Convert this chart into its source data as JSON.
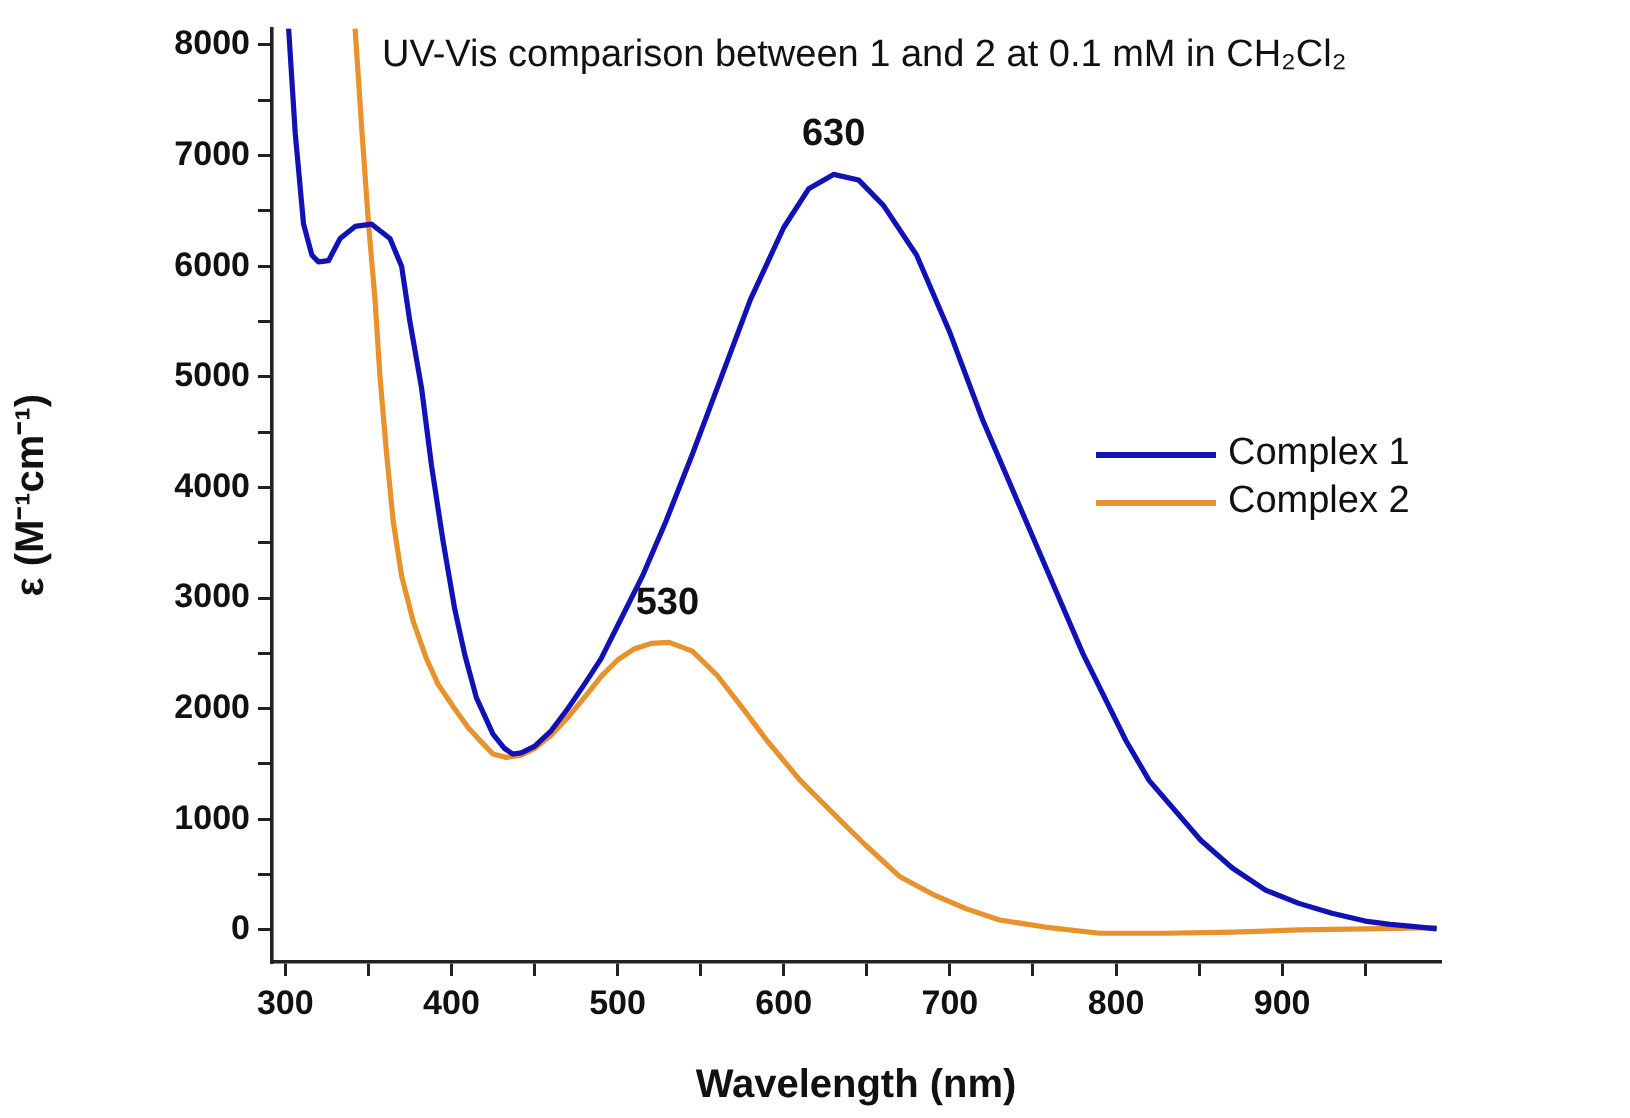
{
  "chart_data": {
    "type": "line",
    "title": "UV-Vis comparison between 1 and 2 at 0.1 mM in CH₂Cl₂",
    "xlabel": "Wavelength (nm)",
    "ylabel": "ε (M⁻¹cm⁻¹)",
    "xlim": [
      292,
      995
    ],
    "ylim": [
      -290,
      8150
    ],
    "xticks": [
      300,
      {
        "value": 350,
        "label": null
      },
      400,
      {
        "value": 450,
        "label": null
      },
      500,
      {
        "value": 550,
        "label": null
      },
      600,
      {
        "value": 650,
        "label": null
      },
      700,
      {
        "value": 750,
        "label": null
      },
      800,
      {
        "value": 850,
        "label": null
      },
      900,
      {
        "value": 950,
        "label": null
      }
    ],
    "yticks": [
      0,
      {
        "value": 500,
        "label": null
      },
      1000,
      {
        "value": 1500,
        "label": null
      },
      2000,
      {
        "value": 2500,
        "label": null
      },
      3000,
      {
        "value": 3500,
        "label": null
      },
      4000,
      {
        "value": 4500,
        "label": null
      },
      5000,
      {
        "value": 5500,
        "label": null
      },
      6000,
      {
        "value": 6500,
        "label": null
      },
      7000,
      {
        "value": 7500,
        "label": null
      },
      8000
    ],
    "grid": false,
    "legend": "right",
    "marker": "none",
    "line_style": "solid",
    "annotations": [
      {
        "text": "630",
        "x": 630,
        "y": 6840
      },
      {
        "text": "530",
        "x": 530,
        "y": 2600
      }
    ],
    "series": [
      {
        "name": "Complex 1",
        "color": "#1212b4",
        "x": [
          302,
          306,
          311,
          316,
          320,
          326,
          333,
          342,
          352,
          363,
          370,
          375,
          382,
          388,
          395,
          402,
          408,
          415,
          425,
          432,
          437,
          442,
          450,
          460,
          470,
          480,
          490,
          500,
          515,
          529,
          545,
          560,
          580,
          600,
          615,
          630,
          645,
          660,
          680,
          700,
          720,
          746,
          760,
          780,
          806,
          820,
          851,
          870,
          890,
          910,
          930,
          950,
          965,
          980,
          993
        ],
        "values": [
          8150,
          7200,
          6380,
          6100,
          6040,
          6050,
          6250,
          6360,
          6380,
          6250,
          6000,
          5500,
          4900,
          4200,
          3510,
          2900,
          2490,
          2100,
          1770,
          1640,
          1590,
          1600,
          1660,
          1800,
          2000,
          2220,
          2450,
          2750,
          3200,
          3690,
          4300,
          4900,
          5700,
          6350,
          6700,
          6830,
          6780,
          6550,
          6100,
          5400,
          4600,
          3690,
          3200,
          2500,
          1710,
          1350,
          810,
          560,
          360,
          240,
          150,
          80,
          50,
          30,
          10
        ]
      },
      {
        "name": "Complex 2",
        "color": "#e8922e",
        "x": [
          342,
          346,
          350,
          354,
          357,
          361,
          365,
          370,
          377,
          385,
          392,
          401,
          410,
          418,
          425,
          433,
          442,
          450,
          460,
          470,
          480,
          490,
          500,
          510,
          520,
          531,
          545,
          560,
          575,
          590,
          610,
          634,
          649,
          670,
          690,
          710,
          730,
          760,
          790,
          830,
          870,
          910,
          950,
          993
        ],
        "values": [
          8150,
          7250,
          6400,
          5700,
          5000,
          4300,
          3690,
          3200,
          2790,
          2450,
          2220,
          2020,
          1830,
          1700,
          1590,
          1560,
          1580,
          1640,
          1760,
          1920,
          2100,
          2290,
          2440,
          2540,
          2590,
          2600,
          2520,
          2300,
          2010,
          1710,
          1350,
          990,
          770,
          480,
          320,
          190,
          90,
          20,
          -30,
          -30,
          -20,
          0,
          10,
          20
        ]
      }
    ]
  }
}
